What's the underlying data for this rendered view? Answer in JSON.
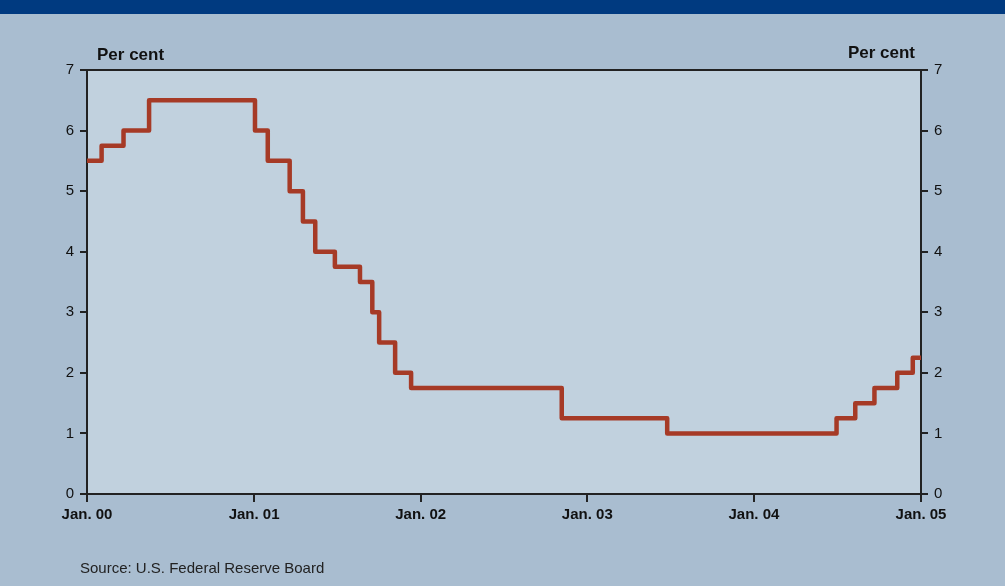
{
  "chart_data": {
    "type": "step",
    "ylabel": "Per cent",
    "y2label": "Per cent",
    "x": [
      "2000-01-01",
      "2000-02-02",
      "2000-03-21",
      "2000-05-16",
      "2001-01-03",
      "2001-01-31",
      "2001-03-20",
      "2001-04-18",
      "2001-05-15",
      "2001-06-27",
      "2001-08-21",
      "2001-09-17",
      "2001-10-02",
      "2001-11-06",
      "2001-12-11",
      "2002-11-06",
      "2003-06-25",
      "2004-06-30",
      "2004-08-10",
      "2004-09-21",
      "2004-11-10",
      "2004-12-14",
      "2005-01-01"
    ],
    "series": [
      {
        "color": "#a63a26",
        "values": [
          5.5,
          5.75,
          6,
          6.5,
          6,
          5.5,
          5,
          4.5,
          4,
          3.75,
          3.5,
          3,
          2.5,
          2,
          1.75,
          1.25,
          1,
          1.25,
          1.5,
          1.75,
          2,
          2.25,
          2.25
        ]
      }
    ],
    "xlim": [
      "2000-01-01",
      "2005-01-01"
    ],
    "xticks": [
      {
        "value": "2000-01-01",
        "label": "Jan. 00"
      },
      {
        "value": "2001-01-01",
        "label": "Jan. 01"
      },
      {
        "value": "2002-01-01",
        "label": "Jan. 02"
      },
      {
        "value": "2003-01-01",
        "label": "Jan. 03"
      },
      {
        "value": "2004-01-01",
        "label": "Jan. 04"
      },
      {
        "value": "2005-01-01",
        "label": "Jan. 05"
      }
    ],
    "ylim": [
      0,
      7
    ],
    "yticks": [
      0,
      1,
      2,
      3,
      4,
      5,
      6,
      7
    ],
    "y2lim": [
      0,
      7
    ],
    "y2ticks": [
      0,
      1,
      2,
      3,
      4,
      5,
      6,
      7
    ],
    "annotations": [
      "Source: U.S. Federal Reserve Board"
    ]
  }
}
